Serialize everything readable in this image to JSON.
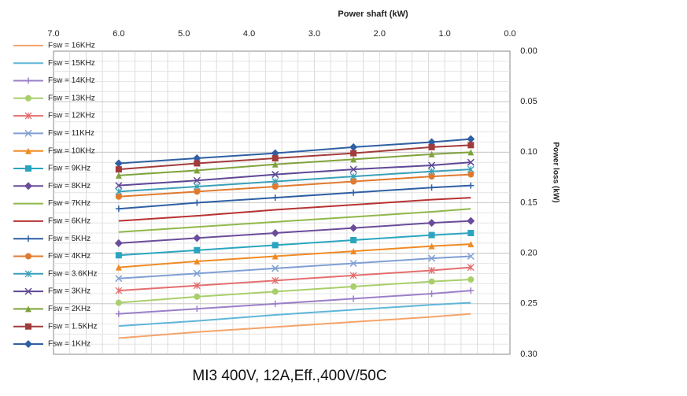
{
  "chart_data": {
    "type": "line",
    "title": "MI3 400V, 12A,Eff.,400V/50C",
    "xlabel": "Power shaft (kW)",
    "ylabel": "Power loss (kW)",
    "xlim": [
      0,
      7
    ],
    "ylim": [
      0,
      0.3
    ],
    "x_ticks": [
      "0.0",
      "1.0",
      "2.0",
      "3.0",
      "4.0",
      "5.0",
      "6.0",
      "7.0"
    ],
    "y_ticks": [
      "0.00",
      "0.05",
      "0.10",
      "0.15",
      "0.20",
      "0.25",
      "0.30"
    ],
    "x_axis_position": "top",
    "y_axis_inverted": true,
    "image_mirrored": true,
    "grid": true,
    "legend_position": "right",
    "x": [
      0.6,
      1.2,
      2.4,
      3.6,
      4.8,
      6.0
    ],
    "series": [
      {
        "name": "Fsw = 1KHz",
        "color": "#2e5fa3",
        "marker": "diamond",
        "values": [
          0.087,
          0.09,
          0.095,
          0.101,
          0.106,
          0.111
        ]
      },
      {
        "name": "Fsw = 1.5KHz",
        "color": "#a23b3b",
        "marker": "square",
        "values": [
          0.093,
          0.095,
          0.101,
          0.106,
          0.111,
          0.117
        ]
      },
      {
        "name": "Fsw = 2KHz",
        "color": "#7fa33b",
        "marker": "triangle",
        "values": [
          0.1,
          0.102,
          0.107,
          0.112,
          0.118,
          0.123
        ]
      },
      {
        "name": "Fsw = 3KHz",
        "color": "#5e4896",
        "marker": "x",
        "values": [
          0.11,
          0.113,
          0.117,
          0.122,
          0.128,
          0.133
        ]
      },
      {
        "name": "Fsw = 3.6KHz",
        "color": "#3aa0b8",
        "marker": "star",
        "values": [
          0.117,
          0.119,
          0.124,
          0.129,
          0.134,
          0.139
        ]
      },
      {
        "name": "Fsw = 4KHz",
        "color": "#e07a2e",
        "marker": "circle",
        "values": [
          0.122,
          0.124,
          0.129,
          0.134,
          0.139,
          0.144
        ]
      },
      {
        "name": "Fsw = 5KHz",
        "color": "#2e5fa3",
        "marker": "plus",
        "values": [
          0.133,
          0.135,
          0.14,
          0.145,
          0.15,
          0.156
        ]
      },
      {
        "name": "Fsw = 6KHz",
        "color": "#b83232",
        "marker": "none",
        "values": [
          0.145,
          0.147,
          0.152,
          0.157,
          0.163,
          0.168
        ]
      },
      {
        "name": "Fsw = 7KHz",
        "color": "#8fb84a",
        "marker": "none",
        "values": [
          0.156,
          0.159,
          0.164,
          0.169,
          0.174,
          0.179
        ]
      },
      {
        "name": "Fsw = 8KHz",
        "color": "#6b4c9a",
        "marker": "diamond",
        "values": [
          0.168,
          0.17,
          0.175,
          0.18,
          0.185,
          0.19
        ]
      },
      {
        "name": "Fsw = 9KHz",
        "color": "#2aa5bf",
        "marker": "square",
        "values": [
          0.18,
          0.182,
          0.187,
          0.192,
          0.197,
          0.202
        ]
      },
      {
        "name": "Fsw = 10KHz",
        "color": "#f08a24",
        "marker": "triangle",
        "values": [
          0.191,
          0.193,
          0.198,
          0.203,
          0.208,
          0.214
        ]
      },
      {
        "name": "Fsw = 11KHz",
        "color": "#7f9fd4",
        "marker": "x",
        "values": [
          0.203,
          0.205,
          0.21,
          0.215,
          0.22,
          0.225
        ]
      },
      {
        "name": "Fsw = 12KHz",
        "color": "#e46e6e",
        "marker": "star",
        "values": [
          0.214,
          0.217,
          0.222,
          0.227,
          0.232,
          0.237
        ]
      },
      {
        "name": "Fsw = 13KHz",
        "color": "#a8cf6b",
        "marker": "circle",
        "values": [
          0.226,
          0.228,
          0.233,
          0.238,
          0.243,
          0.249
        ]
      },
      {
        "name": "Fsw = 14KHz",
        "color": "#9b7fc9",
        "marker": "plus",
        "values": [
          0.237,
          0.24,
          0.245,
          0.25,
          0.255,
          0.26
        ]
      },
      {
        "name": "Fsw = 15KHz",
        "color": "#5fb6d9",
        "marker": "none",
        "values": [
          0.249,
          0.251,
          0.256,
          0.261,
          0.267,
          0.272
        ]
      },
      {
        "name": "Fsw = 16KHz",
        "color": "#f4a46a",
        "marker": "none",
        "values": [
          0.26,
          0.263,
          0.268,
          0.273,
          0.278,
          0.284
        ]
      }
    ]
  }
}
